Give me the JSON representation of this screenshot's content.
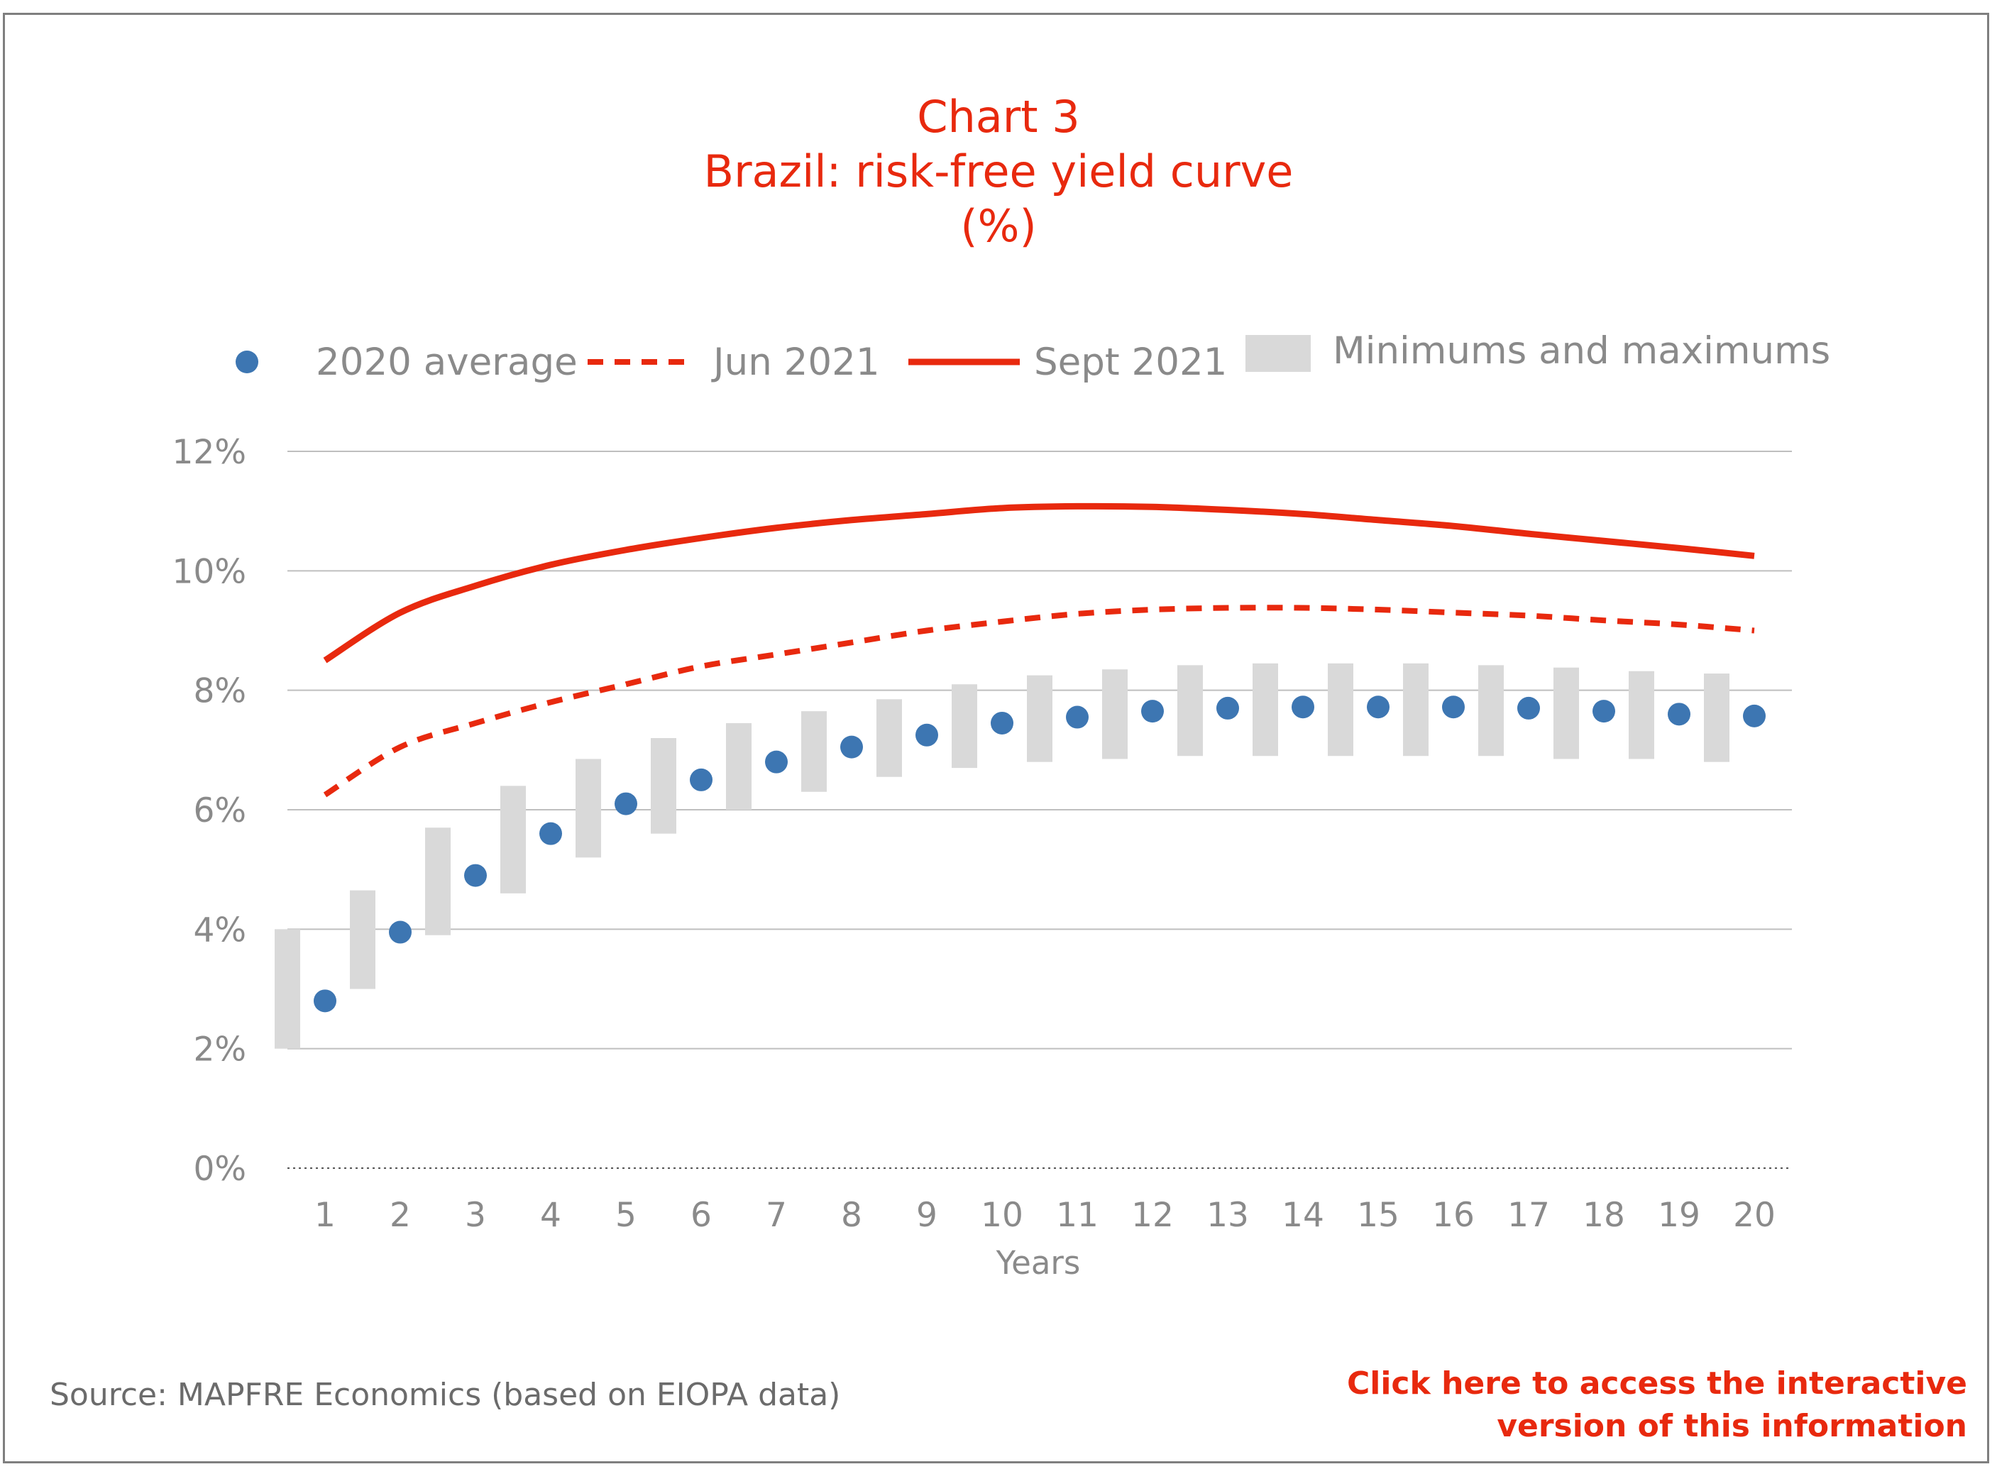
{
  "title": {
    "line1": "Chart 3",
    "line2": "Brazil: risk-free yield curve",
    "line3": "(%)"
  },
  "source": "Source: MAPFRE Economics (based on EIOPA data)",
  "link": {
    "line1": "Click here to access the interactive",
    "line2": "version of this information"
  },
  "colors": {
    "accent": "#e8290e",
    "dot": "#3d76b2",
    "band": "#d9d9d9",
    "grid": "#bfbfbf",
    "text": "#8a8a8a"
  },
  "chart_data": {
    "type": "line",
    "xlabel": "Years",
    "ylabel": "",
    "ylim": [
      0,
      12
    ],
    "yticks": [
      0,
      2,
      4,
      6,
      8,
      10,
      12
    ],
    "ytick_labels": [
      "0%",
      "2%",
      "4%",
      "6%",
      "8%",
      "10%",
      "12%"
    ],
    "categories": [
      "1",
      "2",
      "3",
      "4",
      "5",
      "6",
      "7",
      "8",
      "9",
      "10",
      "11",
      "12",
      "13",
      "14",
      "15",
      "16",
      "17",
      "18",
      "19",
      "20"
    ],
    "legend_position": "top",
    "legend": [
      "2020 average",
      "Jun 2021",
      "Sept 2021",
      "Minimums and maximums"
    ],
    "series": [
      {
        "name": "2020 average",
        "style": "dots",
        "values": [
          2.8,
          3.95,
          4.9,
          5.6,
          6.1,
          6.5,
          6.8,
          7.05,
          7.25,
          7.45,
          7.55,
          7.65,
          7.7,
          7.72,
          7.72,
          7.72,
          7.7,
          7.65,
          7.6,
          7.57
        ]
      },
      {
        "name": "Jun 2021",
        "style": "dashed",
        "values": [
          6.25,
          7.05,
          7.45,
          7.8,
          8.1,
          8.4,
          8.6,
          8.8,
          9.0,
          9.15,
          9.28,
          9.35,
          9.38,
          9.38,
          9.35,
          9.3,
          9.25,
          9.17,
          9.1,
          9.0
        ]
      },
      {
        "name": "Sept 2021",
        "style": "solid",
        "values": [
          8.5,
          9.3,
          9.75,
          10.1,
          10.35,
          10.55,
          10.72,
          10.85,
          10.95,
          11.05,
          11.08,
          11.07,
          11.02,
          10.95,
          10.85,
          10.75,
          10.62,
          10.5,
          10.38,
          10.25
        ]
      },
      {
        "name": "Minimums and maximums",
        "style": "range",
        "min": [
          2.0,
          3.0,
          3.9,
          4.6,
          5.2,
          5.6,
          6.0,
          6.3,
          6.55,
          6.7,
          6.8,
          6.85,
          6.9,
          6.9,
          6.9,
          6.9,
          6.9,
          6.85,
          6.85,
          6.8
        ],
        "max": [
          4.0,
          4.65,
          5.7,
          6.4,
          6.85,
          7.2,
          7.45,
          7.65,
          7.85,
          8.1,
          8.25,
          8.35,
          8.42,
          8.45,
          8.45,
          8.45,
          8.42,
          8.38,
          8.32,
          8.28
        ]
      }
    ]
  }
}
